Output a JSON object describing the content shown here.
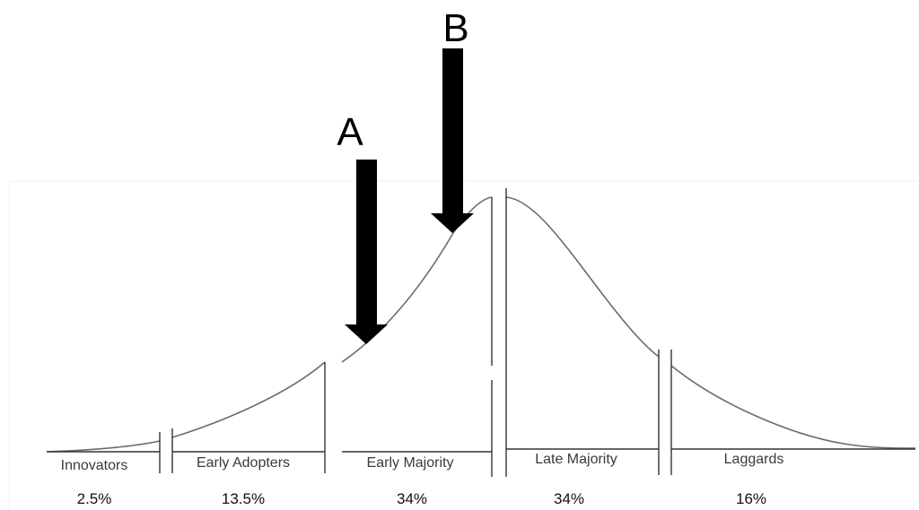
{
  "markers": {
    "a": {
      "label": "A"
    },
    "b": {
      "label": "B"
    }
  },
  "segments": [
    {
      "key": "innovators",
      "label": "Innovators",
      "percent": "2.5%"
    },
    {
      "key": "early-adopters",
      "label": "Early Adopters",
      "percent": "13.5%"
    },
    {
      "key": "early-majority",
      "label": "Early Majority",
      "percent": "34%"
    },
    {
      "key": "late-majority",
      "label": "Late Majority",
      "percent": "34%"
    },
    {
      "key": "laggards",
      "label": "Laggards",
      "percent": "16%"
    }
  ],
  "colors": {
    "curve": "#6b6b6b",
    "arrow": "#000000",
    "divider": "#333333"
  }
}
